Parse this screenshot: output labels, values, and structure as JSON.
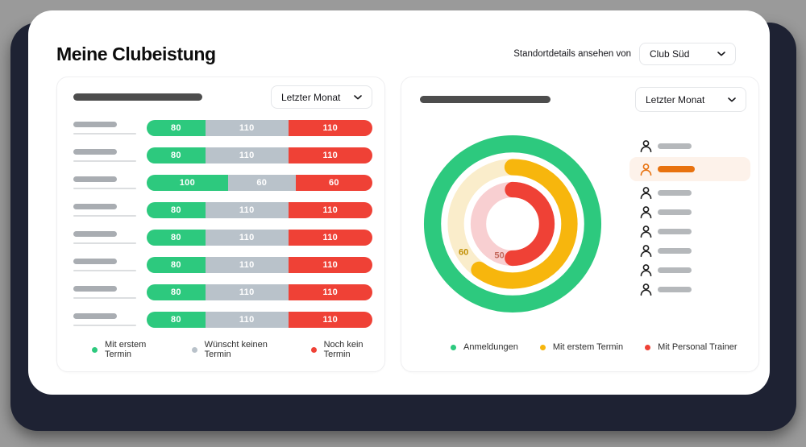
{
  "page": {
    "title": "Meine Clubeistung",
    "background": "#9A9A9A",
    "backdrop_color": "#1E2233"
  },
  "header": {
    "location_label": "Standortdetails ansehen von",
    "location_value": "Club Süd",
    "chevron_icon": "chevron-down"
  },
  "left_card": {
    "period_value": "Letzter Monat",
    "legend": [
      {
        "label": "Mit erstem Termin",
        "color": "#2DC97E"
      },
      {
        "label": "Wünscht keinen Termin",
        "color": "#B9C2CA"
      },
      {
        "label": "Noch kein Termin",
        "color": "#EF4136"
      }
    ]
  },
  "right_card": {
    "period_value": "Letzter Monat",
    "member_rows": {
      "count": 8,
      "highlighted_index": 1
    },
    "highlight_color": "#E8720F",
    "highlight_bg": "#FDF2EA",
    "person_icon_color": "#1D1D1D",
    "legend": [
      {
        "label": "Anmeldungen",
        "color": "#2DC97E"
      },
      {
        "label": "Mit erstem Termin",
        "color": "#F7B60D"
      },
      {
        "label": "Mit Personal Trainer",
        "color": "#EF4136"
      }
    ]
  },
  "chart_data": [
    {
      "id": "club-stacked-bars",
      "type": "bar",
      "orientation": "horizontal-stacked",
      "categories": [
        "",
        "",
        "",
        "",
        "",
        "",
        "",
        ""
      ],
      "category_labels_visible": false,
      "series": [
        {
          "name": "Mit erstem Termin",
          "color": "#2DC97E",
          "values": [
            80,
            80,
            100,
            80,
            80,
            80,
            80,
            80
          ]
        },
        {
          "name": "Wünscht keinen Termin",
          "color": "#B9C2CA",
          "values": [
            110,
            110,
            60,
            110,
            110,
            110,
            110,
            110
          ]
        },
        {
          "name": "Noch kein Termin",
          "color": "#EF4136",
          "values": [
            110,
            110,
            60,
            110,
            110,
            110,
            110,
            110
          ]
        }
      ],
      "segment_widths_pct": [
        [
          26,
          36.7,
          37.3
        ],
        [
          26,
          36.7,
          37.3
        ],
        [
          36,
          30,
          34
        ],
        [
          26,
          36.7,
          37.3
        ],
        [
          26,
          36.7,
          37.3
        ],
        [
          26,
          36.7,
          37.3
        ],
        [
          26,
          36.7,
          37.3
        ],
        [
          26,
          36.7,
          37.3
        ]
      ],
      "value_labels": "inside-white",
      "legend_position": "bottom"
    },
    {
      "id": "club-concentric-donut",
      "type": "pie",
      "subtype": "concentric-donut",
      "start_angle": "top",
      "direction": "clockwise",
      "rings": [
        {
          "name": "Anmeldungen",
          "color": "#2DC97E",
          "sweep_pct": 100,
          "label": ""
        },
        {
          "name": "Mit erstem Termin",
          "color": "#F7B60D",
          "track_color": "#FAEDCB",
          "sweep_pct": 60,
          "label": "60",
          "label_color": "#C18F05"
        },
        {
          "name": "Mit Personal Trainer",
          "color": "#EF4136",
          "track_color": "#F8CFD1",
          "sweep_pct": 50,
          "label": "50",
          "label_color": "#C4685C"
        }
      ],
      "legend_position": "bottom"
    }
  ]
}
